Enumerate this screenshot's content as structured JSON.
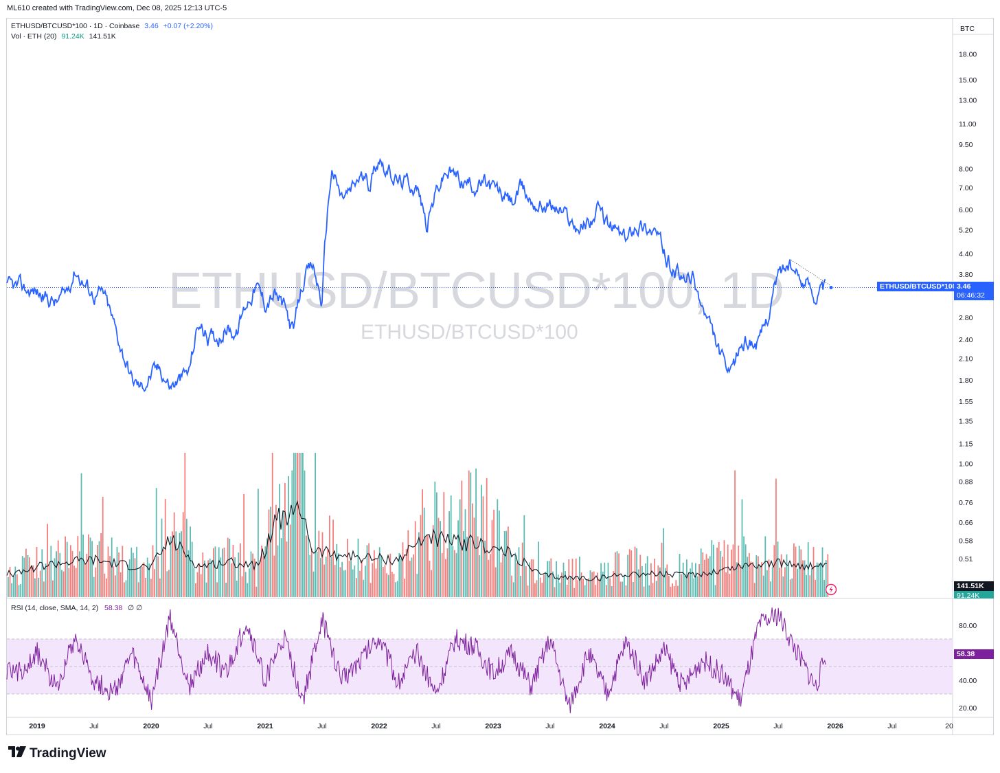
{
  "attribution": "ML610 created with TradingView.com, Dec 08, 2025 12:13 UTC-5",
  "legend": {
    "symbol": "ETHUSD/BTCUSD*100 · 1D · Coinbase",
    "last": "3.46",
    "change": "+0.07 (+2.20%)",
    "volume_label": "Vol · ETH (20)",
    "volume_ma": "91.24K",
    "volume_last": "141.51K"
  },
  "watermark": {
    "main": "ETHUSD/BTCUSD*100, 1D",
    "sub": "ETHUSD/BTCUSD*100"
  },
  "price_scale": {
    "currency": "BTC",
    "ticks": [
      "18.00",
      "15.00",
      "13.00",
      "11.00",
      "9.50",
      "8.00",
      "7.00",
      "6.00",
      "5.20",
      "4.40",
      "3.80",
      "2.80",
      "2.40",
      "2.10",
      "1.80",
      "1.55",
      "1.35",
      "1.15",
      "1.00",
      "0.88",
      "0.76",
      "0.66",
      "0.58",
      "0.51"
    ],
    "scale": "log"
  },
  "current_price": {
    "symbol_tag": "ETHUSD/BTCUSD*100",
    "value": "3.46",
    "countdown": "06:46:32"
  },
  "volume_tags": {
    "last": "141.51K",
    "ma": "91.24K"
  },
  "rsi": {
    "label": "RSI (14, close, SMA, 14, 2)",
    "value": "58.38",
    "extra": "∅ ∅",
    "ticks": [
      "80.00",
      "40.00",
      "20.00"
    ],
    "band": [
      30,
      70
    ],
    "mid": 50,
    "range": [
      15,
      95
    ]
  },
  "time_axis": [
    "2019",
    "Jul",
    "2020",
    "Jul",
    "2021",
    "Jul",
    "2022",
    "Jul",
    "2023",
    "Jul",
    "2024",
    "Jul",
    "2025",
    "Jul",
    "2026",
    "Jul",
    "20"
  ],
  "brand": "TradingView",
  "colors": {
    "price_line": "#2962ff",
    "vol_up": "#26a69a",
    "vol_down": "#ef5350",
    "rsi_line": "#7e1f9e",
    "rsi_band": "#f3e5fb",
    "change": "#2962ff",
    "vol_ma_text": "#089981"
  },
  "chart_data": [
    {
      "type": "line",
      "title": "ETHUSD/BTCUSD*100 · 1D · Coinbase",
      "scale": "log",
      "ylim": [
        0.47,
        19.5
      ],
      "x": [
        "2018-11",
        "2019-01",
        "2019-03",
        "2019-04",
        "2019-05",
        "2019-06",
        "2019-07",
        "2019-08",
        "2019-09",
        "2019-10",
        "2019-11",
        "2019-12",
        "2020-01",
        "2020-02",
        "2020-03",
        "2020-04",
        "2020-05",
        "2020-06",
        "2020-07",
        "2020-08",
        "2020-09",
        "2020-10",
        "2020-11",
        "2020-12",
        "2021-01",
        "2021-02",
        "2021-03",
        "2021-04",
        "2021-05",
        "2021-06",
        "2021-07",
        "2021-08",
        "2021-09",
        "2021-10",
        "2021-11",
        "2021-12",
        "2022-01",
        "2022-02",
        "2022-03",
        "2022-04",
        "2022-05",
        "2022-06",
        "2022-07",
        "2022-08",
        "2022-09",
        "2022-10",
        "2022-11",
        "2022-12",
        "2023-01",
        "2023-02",
        "2023-03",
        "2023-04",
        "2023-05",
        "2023-06",
        "2023-07",
        "2023-08",
        "2023-09",
        "2023-10",
        "2023-11",
        "2023-12",
        "2024-01",
        "2024-02",
        "2024-03",
        "2024-04",
        "2024-05",
        "2024-06",
        "2024-07",
        "2024-08",
        "2024-09",
        "2024-10",
        "2024-11",
        "2024-12",
        "2025-01",
        "2025-02",
        "2025-03",
        "2025-04",
        "2025-05",
        "2025-06",
        "2025-07",
        "2025-08",
        "2025-09",
        "2025-10",
        "2025-11",
        "2025-12"
      ],
      "y": [
        3.45,
        3.35,
        3.1,
        3.3,
        3.95,
        3.55,
        3.3,
        3.3,
        2.7,
        2.2,
        1.8,
        1.7,
        1.88,
        1.95,
        1.72,
        1.8,
        1.9,
        2.7,
        2.4,
        2.45,
        2.6,
        2.5,
        3.1,
        3.5,
        3.1,
        3.3,
        3.0,
        2.5,
        3.6,
        4.0,
        3.1,
        8.0,
        6.5,
        6.8,
        7.6,
        7.2,
        8.8,
        7.8,
        7.3,
        7.3,
        7.0,
        5.3,
        6.8,
        7.8,
        7.6,
        7.3,
        7.1,
        7.2,
        7.0,
        6.6,
        6.3,
        6.9,
        6.4,
        6.2,
        6.2,
        6.0,
        5.6,
        5.3,
        5.5,
        5.9,
        5.4,
        5.2,
        4.8,
        5.5,
        5.3,
        5.2,
        4.4,
        3.9,
        3.6,
        3.7,
        3.0,
        2.5,
        2.1,
        1.8,
        2.3,
        2.4,
        2.3,
        2.9,
        3.8,
        4.1,
        3.7,
        3.6,
        3.3,
        3.46
      ],
      "series": [
        {
          "name": "ETHUSD/BTCUSD*100",
          "last": 3.46
        }
      ]
    },
    {
      "type": "bar",
      "title": "Vol · ETH (20)",
      "x": [
        "2018-11",
        "2019-01",
        "2019-04",
        "2019-07",
        "2019-10",
        "2020-01",
        "2020-03",
        "2020-06",
        "2020-09",
        "2020-12",
        "2021-01",
        "2021-02",
        "2021-05",
        "2021-06",
        "2021-09",
        "2021-12",
        "2022-03",
        "2022-06",
        "2022-09",
        "2022-11",
        "2023-03",
        "2023-06",
        "2023-09",
        "2023-12",
        "2024-03",
        "2024-06",
        "2024-09",
        "2024-12",
        "2025-03",
        "2025-06",
        "2025-09",
        "2025-12"
      ],
      "values": [
        50,
        60,
        70,
        80,
        60,
        55,
        140,
        55,
        70,
        50,
        80,
        190,
        250,
        110,
        80,
        60,
        55,
        140,
        110,
        170,
        70,
        45,
        45,
        40,
        60,
        50,
        50,
        60,
        70,
        70,
        65,
        60
      ],
      "ma": [
        30,
        40,
        45,
        48,
        42,
        38,
        75,
        40,
        45,
        42,
        60,
        100,
        110,
        60,
        55,
        50,
        48,
        80,
        70,
        70,
        55,
        28,
        25,
        24,
        30,
        30,
        28,
        32,
        40,
        44,
        42,
        38
      ],
      "series": [
        {
          "name": "Volume",
          "last": "141.51K"
        },
        {
          "name": "Volume MA 20",
          "last": "91.24K"
        }
      ]
    },
    {
      "type": "line",
      "title": "RSI (14, close, SMA, 14, 2)",
      "ylim": [
        15,
        95
      ],
      "x": [
        "2018-11",
        "2019-01",
        "2019-03",
        "2019-05",
        "2019-07",
        "2019-09",
        "2019-11",
        "2020-01",
        "2020-03",
        "2020-05",
        "2020-07",
        "2020-09",
        "2020-11",
        "2021-01",
        "2021-03",
        "2021-05",
        "2021-07",
        "2021-09",
        "2021-11",
        "2022-01",
        "2022-03",
        "2022-05",
        "2022-07",
        "2022-09",
        "2022-11",
        "2023-01",
        "2023-03",
        "2023-05",
        "2023-07",
        "2023-09",
        "2023-11",
        "2024-01",
        "2024-03",
        "2024-05",
        "2024-07",
        "2024-09",
        "2024-11",
        "2025-01",
        "2025-03",
        "2025-05",
        "2025-07",
        "2025-09",
        "2025-11",
        "2025-12"
      ],
      "y": [
        45,
        60,
        35,
        72,
        40,
        30,
        58,
        25,
        85,
        35,
        60,
        45,
        82,
        40,
        70,
        25,
        84,
        40,
        55,
        72,
        38,
        60,
        30,
        70,
        65,
        45,
        60,
        35,
        70,
        20,
        60,
        30,
        68,
        40,
        62,
        35,
        55,
        45,
        25,
        80,
        88,
        60,
        35,
        58.38
      ],
      "series": [
        {
          "name": "RSI",
          "last": 58.38
        }
      ]
    }
  ]
}
